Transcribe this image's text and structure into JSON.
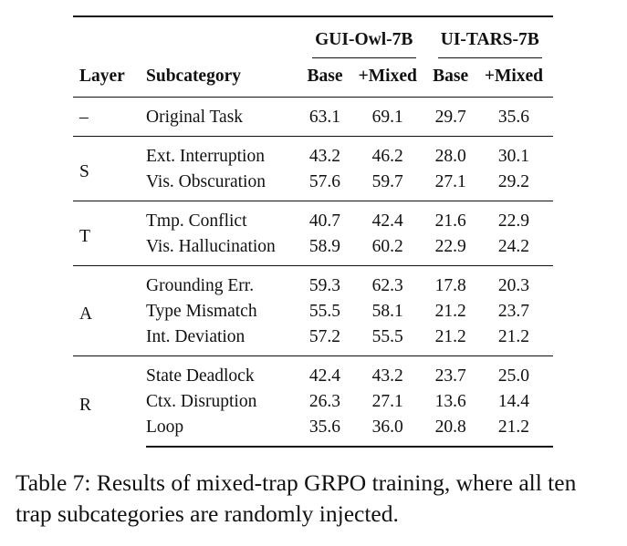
{
  "table": {
    "model_headers": [
      "GUI-Owl-7B",
      "UI-TARS-7B"
    ],
    "columns": [
      "Layer",
      "Subcategory",
      "Base",
      "+Mixed",
      "Base",
      "+Mixed"
    ],
    "groups": [
      {
        "layer": "–",
        "rows": [
          {
            "subcategory": "Original Task",
            "values": [
              "63.1",
              "69.1",
              "29.7",
              "35.6"
            ]
          }
        ]
      },
      {
        "layer": "S",
        "rows": [
          {
            "subcategory": "Ext. Interruption",
            "values": [
              "43.2",
              "46.2",
              "28.0",
              "30.1"
            ]
          },
          {
            "subcategory": "Vis. Obscuration",
            "values": [
              "57.6",
              "59.7",
              "27.1",
              "29.2"
            ]
          }
        ]
      },
      {
        "layer": "T",
        "rows": [
          {
            "subcategory": "Tmp. Conflict",
            "values": [
              "40.7",
              "42.4",
              "21.6",
              "22.9"
            ]
          },
          {
            "subcategory": "Vis. Hallucination",
            "values": [
              "58.9",
              "60.2",
              "22.9",
              "24.2"
            ]
          }
        ]
      },
      {
        "layer": "A",
        "rows": [
          {
            "subcategory": "Grounding Err.",
            "values": [
              "59.3",
              "62.3",
              "17.8",
              "20.3"
            ]
          },
          {
            "subcategory": "Type Mismatch",
            "values": [
              "55.5",
              "58.1",
              "21.2",
              "23.7"
            ]
          },
          {
            "subcategory": "Int. Deviation",
            "values": [
              "57.2",
              "55.5",
              "21.2",
              "21.2"
            ]
          }
        ]
      },
      {
        "layer": "R",
        "rows": [
          {
            "subcategory": "State Deadlock",
            "values": [
              "42.4",
              "43.2",
              "23.7",
              "25.0"
            ]
          },
          {
            "subcategory": "Ctx. Disruption",
            "values": [
              "26.3",
              "27.1",
              "13.6",
              "14.4"
            ]
          },
          {
            "subcategory": "Loop",
            "values": [
              "35.6",
              "36.0",
              "20.8",
              "21.2"
            ]
          }
        ]
      }
    ]
  },
  "caption": "Table 7: Results of mixed-trap GRPO training, where all ten trap subcategories are randomly injected."
}
